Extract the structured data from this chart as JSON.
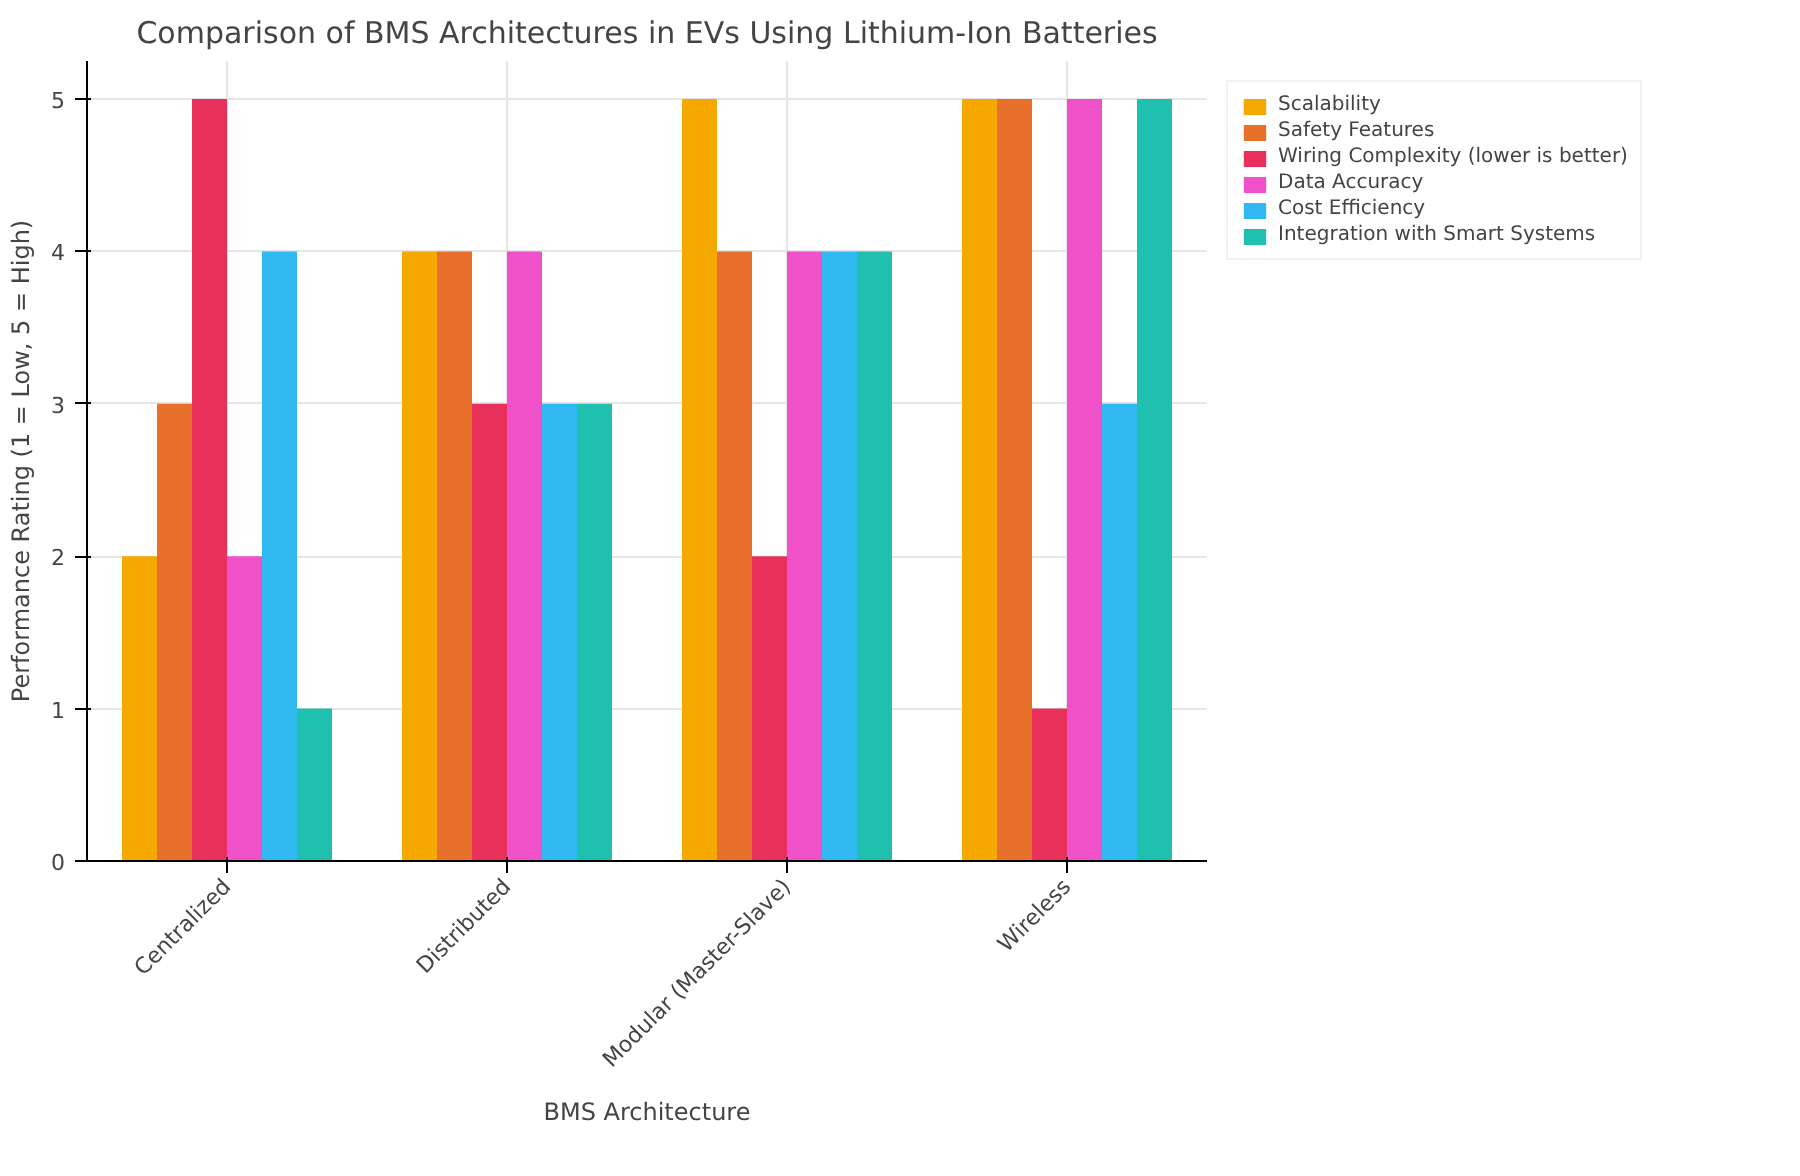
{
  "chart_data": {
    "type": "bar",
    "title": "Comparison of BMS Architectures in EVs Using Lithium-Ion Batteries",
    "xlabel": "BMS Architecture",
    "ylabel": "Performance Rating (1 = Low, 5 = High)",
    "categories": [
      "Centralized",
      "Distributed",
      "Modular (Master-Slave)",
      "Wireless"
    ],
    "series": [
      {
        "name": "Scalability",
        "color": "#f5a800",
        "values": [
          2,
          4,
          5,
          5
        ]
      },
      {
        "name": "Safety Features",
        "color": "#e8702a",
        "values": [
          3,
          4,
          4,
          5
        ]
      },
      {
        "name": "Wiring Complexity (lower is better)",
        "color": "#e8305a",
        "values": [
          5,
          3,
          2,
          1
        ]
      },
      {
        "name": "Data Accuracy",
        "color": "#f050c8",
        "values": [
          2,
          4,
          4,
          5
        ]
      },
      {
        "name": "Cost Efficiency",
        "color": "#30b8f0",
        "values": [
          4,
          3,
          4,
          3
        ]
      },
      {
        "name": "Integration with Smart Systems",
        "color": "#20c0b0",
        "values": [
          1,
          3,
          4,
          5
        ]
      }
    ],
    "ylim": [
      0,
      5.25
    ],
    "yticks": [
      0,
      1,
      2,
      3,
      4,
      5
    ],
    "grid": true,
    "legend": "top right"
  }
}
